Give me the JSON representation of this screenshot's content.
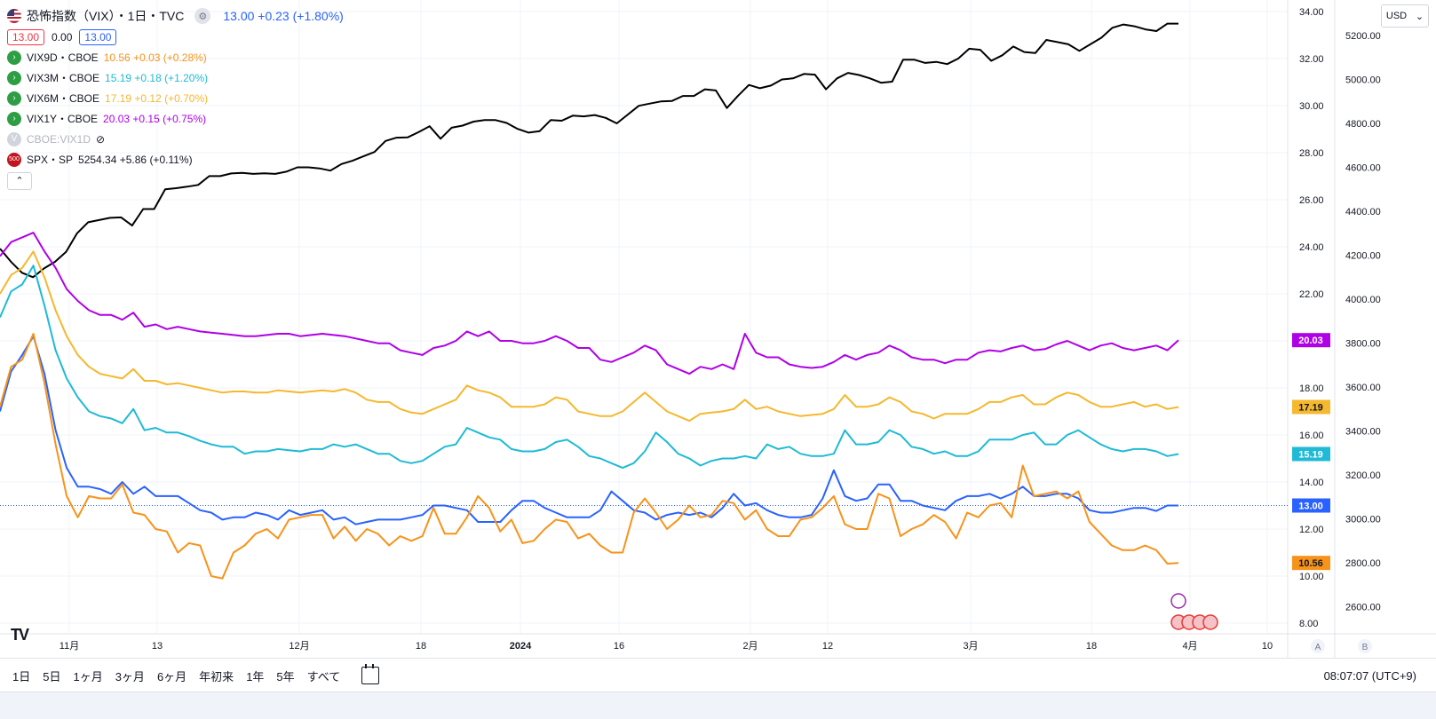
{
  "header": {
    "title": "恐怖指数（VIX）・1日・TVC",
    "last_price": "13.00",
    "change": "+0.23 (+1.80%)",
    "bid": "13.00",
    "spread": "0.00",
    "ask": "13.00"
  },
  "legend": [
    {
      "label": "VIX9D・CBOE",
      "value": "10.56 +0.03 (+0.28%)",
      "color": "#f7931a"
    },
    {
      "label": "VIX3M・CBOE",
      "value": "15.19 +0.18 (+1.20%)",
      "color": "#1fbad6"
    },
    {
      "label": "VIX6M・CBOE",
      "value": "17.19 +0.12 (+0.70%)",
      "color": "#f5b82e"
    },
    {
      "label": "VIX1Y・CBOE",
      "value": "20.03 +0.15 (+0.75%)",
      "color": "#b000e8"
    },
    {
      "label": "CBOE:VIX1D",
      "value": "",
      "color": "#b2b5be"
    },
    {
      "label": "SPX・SP",
      "value": "5254.34 +5.86 (+0.11%)",
      "color": "#131722"
    }
  ],
  "icons": {
    "flag": "us-flag-icon",
    "settings": "gear-icon",
    "series": "series-play-icon",
    "hidden": "eye-off-icon",
    "collapse": "chevron-up-icon",
    "spx_badge": "500"
  },
  "currency": "USD",
  "bottom_bar": {
    "ranges": [
      "1日",
      "5日",
      "1ヶ月",
      "3ヶ月",
      "6ヶ月",
      "年初来",
      "1年",
      "5年",
      "すべて"
    ],
    "clock": "08:07:07 (UTC+9)"
  },
  "scale_buttons": [
    "A",
    "B"
  ],
  "chart_data": {
    "type": "line",
    "x_ticks": [
      "11月",
      "13",
      "12月",
      "18",
      "2024",
      "16",
      "2月",
      "12",
      "3月",
      "18",
      "4月",
      "10"
    ],
    "left_scale": {
      "ticks": [
        "34.00",
        "32.00",
        "30.00",
        "28.00",
        "26.00",
        "24.00",
        "22.00",
        "20.00",
        "18.00",
        "16.00",
        "14.00",
        "12.00",
        "10.00",
        "8.00"
      ],
      "ylim": [
        8,
        34
      ]
    },
    "right_scale": {
      "ticks": [
        "5200.00",
        "5000.00",
        "4800.00",
        "4600.00",
        "4400.00",
        "4200.00",
        "4000.00",
        "3800.00",
        "3600.00",
        "3400.00",
        "3200.00",
        "3000.00",
        "2800.00",
        "2600.00"
      ],
      "ylim": [
        2600,
        5200
      ]
    },
    "last_value_tags": [
      {
        "text": "20.03",
        "color": "#b000e8"
      },
      {
        "text": "17.19",
        "color": "#f5b82e"
      },
      {
        "text": "15.19",
        "color": "#1fbad6"
      },
      {
        "text": "13.00",
        "color": "#2962ff"
      },
      {
        "text": "10.56",
        "color": "#f7931a"
      }
    ],
    "series": [
      {
        "name": "SPX・SP",
        "axis": "right",
        "color": "#000000",
        "values": [
          4230,
          4170,
          4120,
          4100,
          4140,
          4170,
          4215,
          4300,
          4350,
          4360,
          4370,
          4372,
          4335,
          4410,
          4410,
          4500,
          4505,
          4512,
          4520,
          4560,
          4560,
          4572,
          4575,
          4570,
          4573,
          4570,
          4580,
          4600,
          4600,
          4595,
          4585,
          4615,
          4630,
          4650,
          4670,
          4720,
          4735,
          4736,
          4760,
          4787,
          4730,
          4780,
          4790,
          4808,
          4815,
          4815,
          4802,
          4775,
          4758,
          4765,
          4815,
          4812,
          4835,
          4832,
          4838,
          4825,
          4800,
          4840,
          4880,
          4890,
          4900,
          4902,
          4925,
          4925,
          4955,
          4950,
          4870,
          4925,
          4975,
          4960,
          4972,
          5000,
          5005,
          5025,
          5022,
          4955,
          5005,
          5030,
          5020,
          5005,
          4985,
          4990,
          5090,
          5090,
          5075,
          5080,
          5070,
          5095,
          5140,
          5135,
          5085,
          5110,
          5150,
          5125,
          5120,
          5180,
          5170,
          5160,
          5130,
          5160,
          5190,
          5235,
          5250,
          5242,
          5228,
          5220,
          5254,
          5254.34
        ]
      },
      {
        "name": "VIX1Y・CBOE",
        "axis": "left",
        "color": "#b000e8",
        "values": [
          23.6,
          24.2,
          24.4,
          24.6,
          23.8,
          23.1,
          22.2,
          21.7,
          21.3,
          21.1,
          21.1,
          20.9,
          21.2,
          20.6,
          20.7,
          20.5,
          20.6,
          20.5,
          20.4,
          20.35,
          20.3,
          20.25,
          20.2,
          20.2,
          20.25,
          20.3,
          20.3,
          20.2,
          20.25,
          20.3,
          20.25,
          20.2,
          20.1,
          20.0,
          19.9,
          19.9,
          19.6,
          19.5,
          19.4,
          19.7,
          19.8,
          20.0,
          20.4,
          20.2,
          20.4,
          20.0,
          20.0,
          19.9,
          19.9,
          20.0,
          20.2,
          20.0,
          19.7,
          19.7,
          19.2,
          19.1,
          19.3,
          19.5,
          19.8,
          19.6,
          19.0,
          18.8,
          18.6,
          18.9,
          18.8,
          19.0,
          18.8,
          20.3,
          19.5,
          19.3,
          19.3,
          19.0,
          18.9,
          18.85,
          18.9,
          19.1,
          19.4,
          19.2,
          19.4,
          19.5,
          19.8,
          19.6,
          19.3,
          19.2,
          19.2,
          19.05,
          19.2,
          19.2,
          19.5,
          19.6,
          19.55,
          19.7,
          19.8,
          19.6,
          19.65,
          19.85,
          20.0,
          19.8,
          19.6,
          19.8,
          19.9,
          19.7,
          19.6,
          19.7,
          19.8,
          19.6,
          20.03
        ]
      },
      {
        "name": "VIX6M・CBOE",
        "axis": "left",
        "color": "#f5b82e",
        "values": [
          22.0,
          22.8,
          23.1,
          23.8,
          22.7,
          21.3,
          20.2,
          19.4,
          18.9,
          18.6,
          18.5,
          18.4,
          18.8,
          18.3,
          18.3,
          18.15,
          18.2,
          18.1,
          18.0,
          17.9,
          17.8,
          17.85,
          17.85,
          17.8,
          17.8,
          17.9,
          17.85,
          17.8,
          17.85,
          17.9,
          17.85,
          17.95,
          17.8,
          17.5,
          17.4,
          17.4,
          17.1,
          16.95,
          16.9,
          17.1,
          17.3,
          17.5,
          18.1,
          17.9,
          17.8,
          17.6,
          17.2,
          17.2,
          17.2,
          17.3,
          17.6,
          17.5,
          17.0,
          16.9,
          16.8,
          16.8,
          17.0,
          17.4,
          17.8,
          17.4,
          17.0,
          16.8,
          16.6,
          16.9,
          16.95,
          17.0,
          17.1,
          17.5,
          17.1,
          17.2,
          17.0,
          16.9,
          16.8,
          16.85,
          16.9,
          17.1,
          17.7,
          17.2,
          17.2,
          17.3,
          17.6,
          17.4,
          17.0,
          16.9,
          16.7,
          16.9,
          16.9,
          16.9,
          17.1,
          17.4,
          17.4,
          17.6,
          17.7,
          17.3,
          17.3,
          17.6,
          17.8,
          17.7,
          17.4,
          17.2,
          17.2,
          17.3,
          17.4,
          17.2,
          17.3,
          17.1,
          17.19
        ]
      },
      {
        "name": "VIX3M・CBOE",
        "axis": "left",
        "color": "#1fbad6",
        "values": [
          21.0,
          22.1,
          22.4,
          23.2,
          21.5,
          19.6,
          18.4,
          17.6,
          17.0,
          16.8,
          16.7,
          16.5,
          17.1,
          16.2,
          16.3,
          16.1,
          16.1,
          15.95,
          15.75,
          15.6,
          15.5,
          15.5,
          15.2,
          15.3,
          15.3,
          15.4,
          15.35,
          15.3,
          15.4,
          15.4,
          15.6,
          15.5,
          15.6,
          15.4,
          15.2,
          15.2,
          14.9,
          14.8,
          14.9,
          15.2,
          15.5,
          15.6,
          16.3,
          16.1,
          15.9,
          15.8,
          15.4,
          15.3,
          15.3,
          15.4,
          15.7,
          15.8,
          15.5,
          15.1,
          15.0,
          14.8,
          14.6,
          14.8,
          15.3,
          16.1,
          15.7,
          15.2,
          15.0,
          14.7,
          14.9,
          15.0,
          15.0,
          15.1,
          15.0,
          15.6,
          15.4,
          15.5,
          15.2,
          15.1,
          15.1,
          15.2,
          16.2,
          15.6,
          15.6,
          15.7,
          16.2,
          16.0,
          15.5,
          15.4,
          15.2,
          15.3,
          15.1,
          15.1,
          15.3,
          15.8,
          15.8,
          15.8,
          16.0,
          16.1,
          15.6,
          15.6,
          16.0,
          16.2,
          15.9,
          15.6,
          15.4,
          15.3,
          15.4,
          15.4,
          15.3,
          15.1,
          15.19
        ]
      },
      {
        "name": "VIX",
        "axis": "left",
        "color": "#2962ff",
        "values": [
          17.0,
          18.7,
          19.4,
          20.2,
          18.6,
          16.2,
          14.6,
          13.8,
          13.8,
          13.7,
          13.5,
          14.0,
          13.5,
          13.8,
          13.4,
          13.4,
          13.4,
          13.1,
          12.8,
          12.7,
          12.4,
          12.5,
          12.5,
          12.7,
          12.6,
          12.4,
          12.8,
          12.6,
          12.7,
          12.8,
          12.4,
          12.5,
          12.2,
          12.3,
          12.4,
          12.4,
          12.4,
          12.5,
          12.6,
          13.0,
          13.0,
          12.9,
          12.8,
          12.3,
          12.3,
          12.3,
          12.8,
          13.2,
          13.2,
          12.9,
          12.7,
          12.5,
          12.5,
          12.5,
          12.8,
          13.6,
          13.2,
          12.8,
          12.7,
          12.4,
          12.6,
          12.7,
          12.6,
          12.7,
          12.5,
          12.9,
          13.5,
          13.0,
          13.1,
          12.8,
          12.6,
          12.5,
          12.5,
          12.6,
          13.3,
          14.5,
          13.4,
          13.2,
          13.3,
          13.9,
          13.9,
          13.2,
          13.2,
          13.0,
          12.9,
          12.8,
          13.2,
          13.4,
          13.4,
          13.5,
          13.3,
          13.5,
          13.8,
          13.4,
          13.4,
          13.5,
          13.5,
          13.3,
          12.8,
          12.7,
          12.7,
          12.8,
          12.9,
          12.9,
          12.77,
          13.0,
          13.0
        ]
      },
      {
        "name": "VIX9D・CBOE",
        "axis": "left",
        "color": "#f7931a",
        "values": [
          17.2,
          18.9,
          19.2,
          20.3,
          18.2,
          15.6,
          13.4,
          12.5,
          13.4,
          13.3,
          13.3,
          13.9,
          12.7,
          12.6,
          12.0,
          11.9,
          11.0,
          11.4,
          11.3,
          10.0,
          9.9,
          11.0,
          11.3,
          11.8,
          12.0,
          11.6,
          12.4,
          12.5,
          12.6,
          12.6,
          11.6,
          12.1,
          11.5,
          12.0,
          11.8,
          11.3,
          11.7,
          11.5,
          11.7,
          12.9,
          11.8,
          11.8,
          12.5,
          13.4,
          12.9,
          11.9,
          12.4,
          11.4,
          11.5,
          12.0,
          12.4,
          12.3,
          11.6,
          11.8,
          11.3,
          11.0,
          11.0,
          12.7,
          13.3,
          12.7,
          12.0,
          12.4,
          13.0,
          12.5,
          12.6,
          13.2,
          13.1,
          12.4,
          12.8,
          12.0,
          11.7,
          11.7,
          12.4,
          12.5,
          12.9,
          13.4,
          12.2,
          12.0,
          12.0,
          13.5,
          13.3,
          11.7,
          12.0,
          12.2,
          12.6,
          12.3,
          11.6,
          12.7,
          12.5,
          13.0,
          13.1,
          12.5,
          14.7,
          13.4,
          13.5,
          13.6,
          13.3,
          13.6,
          12.3,
          11.8,
          11.3,
          11.1,
          11.1,
          11.3,
          11.1,
          10.53,
          10.56
        ]
      }
    ]
  }
}
